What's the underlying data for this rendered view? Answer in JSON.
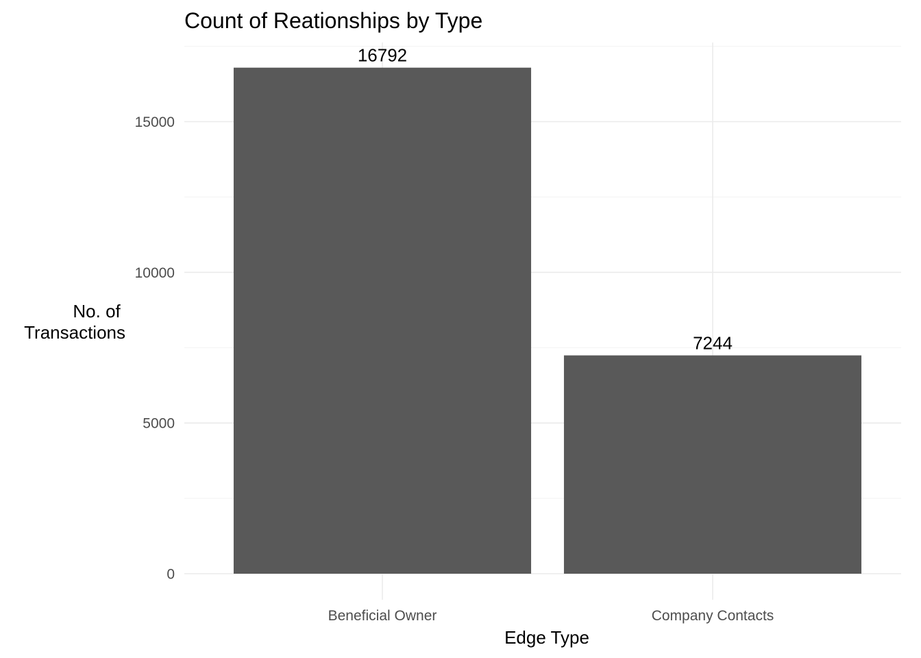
{
  "chart_data": {
    "type": "bar",
    "title": "Count of Reationships by Type",
    "xlabel": "Edge Type",
    "ylabel": [
      "No. of",
      "Transactions"
    ],
    "categories": [
      "Beneficial Owner",
      "Company Contacts"
    ],
    "values": [
      16792,
      7244
    ],
    "data_labels": [
      "16792",
      "7244"
    ],
    "ylim": [
      0,
      17600
    ],
    "yticks": [
      0,
      5000,
      10000,
      15000
    ],
    "ytick_labels": [
      "0",
      "5000",
      "10000",
      "15000"
    ],
    "grid": true,
    "legend": "none",
    "colors": {
      "bar": "#595959",
      "background": "#ffffff",
      "grid": "#ebebeb"
    }
  }
}
